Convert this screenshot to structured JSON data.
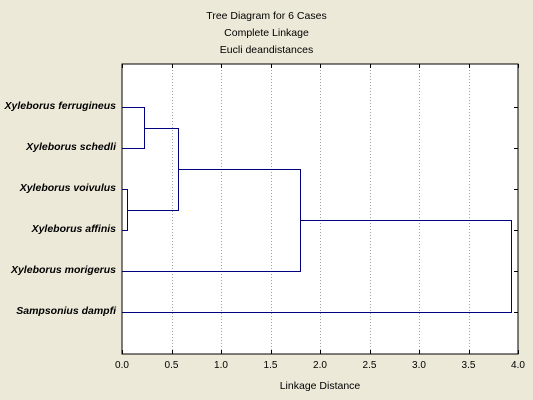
{
  "chart_data": {
    "type": "dendrogram",
    "title": "Tree Diagram for 6 Cases",
    "subtitle": "Complete Linkage",
    "distance_metric": "Eucli deandistances",
    "xlabel": "Linkage Distance",
    "xlim": [
      0,
      4
    ],
    "x_ticks": [
      "0.0",
      "0.5",
      "1.0",
      "1.5",
      "2.0",
      "2.5",
      "3.0",
      "3.5",
      "4.0"
    ],
    "x_tick_values": [
      0,
      0.5,
      1.0,
      1.5,
      2.0,
      2.5,
      3.0,
      3.5,
      4.0
    ],
    "grid": "vertical dotted",
    "line_color": "#000080",
    "leaves": [
      "Xyleborus ferrugineus",
      "Xyleborus schedli",
      "Xyleborus voivulus",
      "Xyleborus affinis",
      "Xyleborus morigerus",
      "Sampsonius dampfi"
    ],
    "merges": [
      {
        "left": 2,
        "right": 3,
        "height": 0.05
      },
      {
        "left": 0,
        "right": 1,
        "height": 0.22
      },
      {
        "left": "m1",
        "right": "m0",
        "height": 0.57
      },
      {
        "left": "m2",
        "right": 4,
        "height": 1.8
      },
      {
        "left": "m3",
        "right": 5,
        "height": 3.93
      }
    ]
  }
}
